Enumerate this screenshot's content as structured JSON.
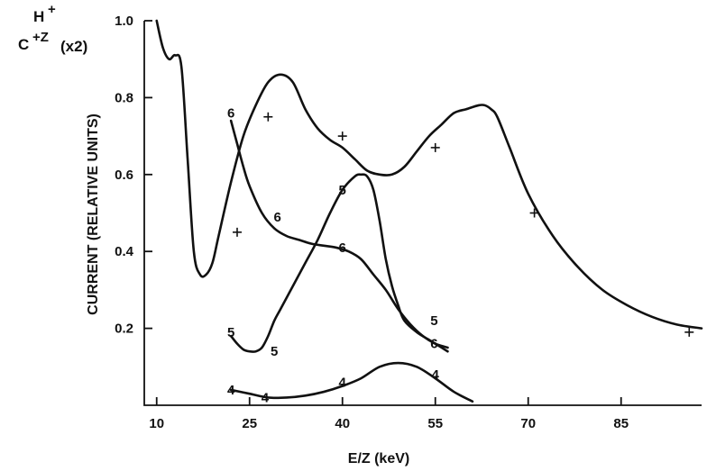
{
  "chart_data": {
    "type": "line",
    "legend": {
      "h_label": "H",
      "h_sup": "+",
      "c_label": "C",
      "c_sup": "+Z",
      "c_note": "(x2)"
    },
    "xlabel": "E/Z (keV)",
    "ylabel": "CURRENT (RELATIVE UNITS)",
    "xlim": [
      8,
      98
    ],
    "ylim": [
      0,
      1.0
    ],
    "x_ticks": [
      10,
      25,
      40,
      55,
      70,
      85
    ],
    "x_tick_labels": [
      "10",
      "25",
      "40",
      "55",
      "70",
      "85"
    ],
    "y_ticks": [
      0.2,
      0.4,
      0.6,
      0.8,
      1.0
    ],
    "y_tick_labels": [
      "0.2",
      "0.4",
      "0.6",
      "0.8",
      "1.0"
    ],
    "grid": false,
    "series": [
      {
        "kind": "H+ curve",
        "x": [
          10,
          11,
          12,
          13,
          14,
          15,
          16,
          17,
          18,
          19,
          20,
          22,
          24,
          26,
          28,
          30,
          32,
          34,
          36,
          38,
          40,
          42,
          44,
          46,
          48,
          50,
          52,
          54,
          56,
          58,
          60,
          62,
          63,
          64,
          65,
          67,
          70,
          74,
          78,
          82,
          86,
          90,
          94,
          98
        ],
        "y": [
          1.0,
          0.93,
          0.9,
          0.91,
          0.88,
          0.64,
          0.4,
          0.34,
          0.34,
          0.37,
          0.44,
          0.58,
          0.7,
          0.78,
          0.84,
          0.86,
          0.84,
          0.77,
          0.72,
          0.69,
          0.67,
          0.64,
          0.61,
          0.6,
          0.6,
          0.62,
          0.66,
          0.7,
          0.73,
          0.76,
          0.77,
          0.78,
          0.78,
          0.77,
          0.75,
          0.67,
          0.55,
          0.44,
          0.36,
          0.3,
          0.26,
          0.23,
          0.21,
          0.2
        ]
      },
      {
        "kind": "C6+ curve",
        "label": "6",
        "x": [
          22,
          23,
          24,
          25,
          27,
          29,
          31,
          33,
          35,
          37,
          39,
          41,
          43,
          45,
          47,
          49,
          51,
          53,
          55,
          57
        ],
        "y": [
          0.74,
          0.68,
          0.62,
          0.57,
          0.5,
          0.46,
          0.44,
          0.43,
          0.42,
          0.415,
          0.41,
          0.4,
          0.38,
          0.34,
          0.3,
          0.25,
          0.21,
          0.18,
          0.16,
          0.15
        ]
      },
      {
        "kind": "C5+ curve",
        "label": "5",
        "x": [
          22,
          23,
          24,
          25,
          26,
          27,
          28,
          29,
          30,
          32,
          34,
          36,
          38,
          40,
          42,
          43,
          44,
          45,
          46,
          47,
          48,
          49,
          50,
          52,
          54,
          56,
          57
        ],
        "y": [
          0.18,
          0.16,
          0.145,
          0.14,
          0.14,
          0.15,
          0.18,
          0.22,
          0.25,
          0.31,
          0.37,
          0.43,
          0.5,
          0.56,
          0.595,
          0.6,
          0.595,
          0.56,
          0.48,
          0.38,
          0.31,
          0.26,
          0.22,
          0.19,
          0.17,
          0.15,
          0.14
        ]
      },
      {
        "kind": "C4+ curve",
        "label": "4",
        "x": [
          22,
          25,
          28,
          31,
          34,
          37,
          40,
          43,
          46,
          49,
          52,
          55,
          58,
          61
        ],
        "y": [
          0.04,
          0.03,
          0.02,
          0.02,
          0.025,
          0.035,
          0.05,
          0.07,
          0.1,
          0.11,
          0.1,
          0.07,
          0.035,
          0.01
        ]
      }
    ],
    "markers_plus": {
      "x": [
        23,
        28,
        40,
        55,
        71,
        96
      ],
      "y": [
        0.45,
        0.75,
        0.7,
        0.67,
        0.5,
        0.19
      ]
    },
    "curve_labels": [
      {
        "text": "6",
        "x": 22,
        "y": 0.76
      },
      {
        "text": "6",
        "x": 29.5,
        "y": 0.49
      },
      {
        "text": "6",
        "x": 40,
        "y": 0.41
      },
      {
        "text": "6",
        "x": 54.8,
        "y": 0.16
      },
      {
        "text": "5",
        "x": 40,
        "y": 0.56
      },
      {
        "text": "5",
        "x": 54.8,
        "y": 0.22
      },
      {
        "text": "5",
        "x": 22,
        "y": 0.19
      },
      {
        "text": "5",
        "x": 29,
        "y": 0.14
      },
      {
        "text": "4",
        "x": 22,
        "y": 0.04
      },
      {
        "text": "4",
        "x": 27.5,
        "y": 0.02
      },
      {
        "text": "4",
        "x": 40,
        "y": 0.06
      },
      {
        "text": "4",
        "x": 55,
        "y": 0.08
      }
    ]
  }
}
